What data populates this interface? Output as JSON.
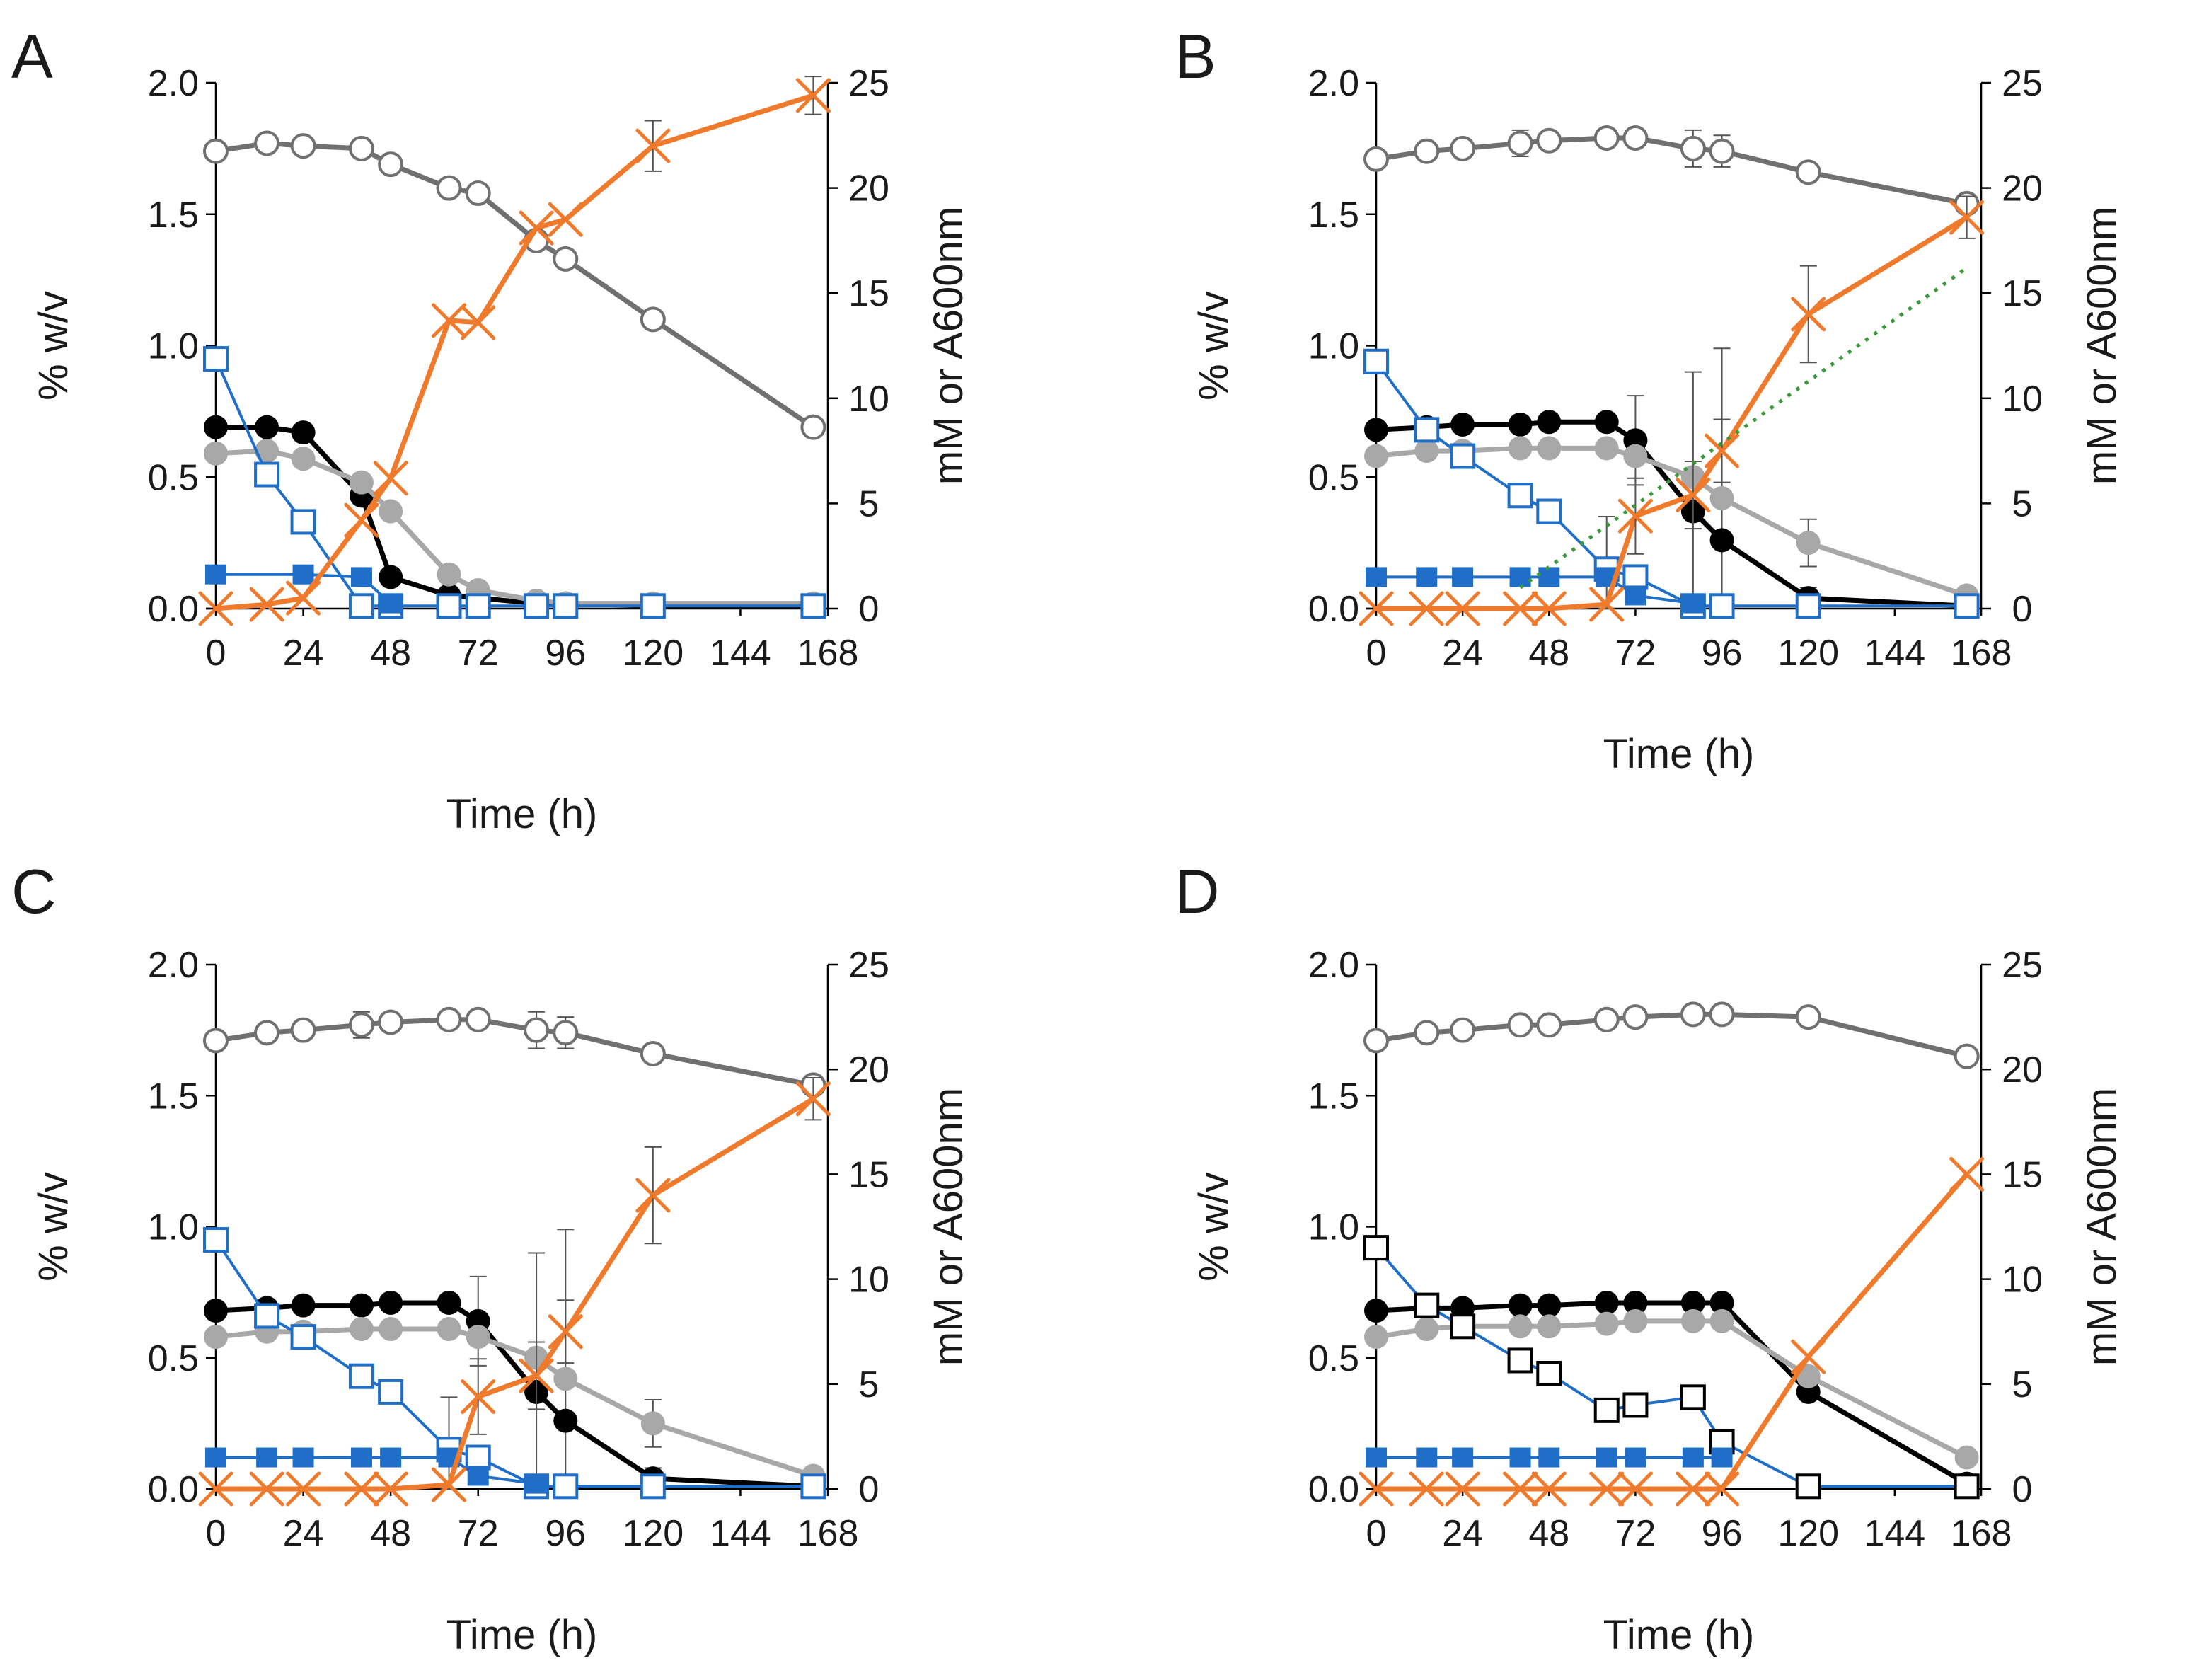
{
  "chart_data": [
    {
      "type": "line",
      "panel": "A",
      "xlabel": "Time (h)",
      "ylabel_left": "% w/v",
      "ylabel_right": "mM or A600nm",
      "xticks": [
        "0",
        "24",
        "48",
        "72",
        "96",
        "120",
        "144",
        "168"
      ],
      "yticks_left": [
        "0.0",
        "0.5",
        "1.0",
        "1.5",
        "2.0"
      ],
      "yticks_right": [
        "0",
        "5",
        "10",
        "15",
        "20",
        "25"
      ],
      "xlim": [
        0,
        168
      ],
      "ylim_left": [
        0,
        2.0
      ],
      "ylim_right": [
        0,
        25
      ],
      "series": [
        {
          "name": "open-circle-grey",
          "axis": "left",
          "color": "#707070",
          "marker": "open-circle",
          "x": [
            0,
            14,
            24,
            40,
            48,
            64,
            72,
            88,
            96,
            120,
            164
          ],
          "values": [
            1.74,
            1.77,
            1.76,
            1.75,
            1.69,
            1.6,
            1.58,
            1.4,
            1.33,
            1.1,
            0.69
          ]
        },
        {
          "name": "filled-circle-black",
          "axis": "left",
          "color": "#000000",
          "marker": "filled-circle",
          "x": [
            0,
            14,
            24,
            40,
            48,
            64,
            72,
            88,
            96,
            120,
            164
          ],
          "values": [
            0.69,
            0.69,
            0.67,
            0.43,
            0.12,
            0.05,
            0.04,
            0.02,
            0.02,
            0.01,
            0.01
          ]
        },
        {
          "name": "filled-circle-grey",
          "axis": "left",
          "color": "#a8a8a8",
          "marker": "filled-circle",
          "x": [
            0,
            14,
            24,
            40,
            48,
            64,
            72,
            88,
            96,
            120,
            164
          ],
          "values": [
            0.59,
            0.6,
            0.57,
            0.48,
            0.37,
            0.13,
            0.07,
            0.03,
            0.02,
            0.02,
            0.02
          ]
        },
        {
          "name": "open-square-blue",
          "axis": "left",
          "color": "#1f6fc9",
          "marker": "open-square",
          "x": [
            0,
            14,
            24,
            40,
            48,
            64,
            72,
            88,
            96,
            120,
            164
          ],
          "values": [
            0.95,
            0.51,
            0.33,
            0.01,
            0.01,
            0.01,
            0.01,
            0.01,
            0.01,
            0.01,
            0.01
          ]
        },
        {
          "name": "filled-square-blue",
          "axis": "left",
          "color": "#1f6fc9",
          "marker": "filled-square",
          "x": [
            0,
            24,
            40,
            48
          ],
          "values": [
            0.13,
            0.13,
            0.12,
            0.02
          ]
        },
        {
          "name": "cross-orange",
          "axis": "right",
          "color": "#f07a2c",
          "marker": "cross",
          "x": [
            0,
            14,
            24,
            40,
            48,
            64,
            72,
            88,
            96,
            120,
            164
          ],
          "values": [
            0,
            0.2,
            0.5,
            4.2,
            6.2,
            13.7,
            13.6,
            18.1,
            18.5,
            22.0,
            24.4
          ],
          "err": [
            0,
            0,
            0,
            0,
            0,
            0,
            0,
            0,
            0,
            1.2,
            0.9
          ]
        }
      ]
    },
    {
      "type": "line",
      "panel": "B",
      "xlabel": "Time (h)",
      "ylabel_left": "% w/v",
      "ylabel_right": "mM or A600nm",
      "xticks": [
        "0",
        "24",
        "48",
        "72",
        "96",
        "120",
        "144",
        "168"
      ],
      "yticks_left": [
        "0.0",
        "0.5",
        "1.0",
        "1.5",
        "2.0"
      ],
      "yticks_right": [
        "0",
        "5",
        "10",
        "15",
        "20",
        "25"
      ],
      "xlim": [
        0,
        168
      ],
      "ylim_left": [
        0,
        2.0
      ],
      "ylim_right": [
        0,
        25
      ],
      "series": [
        {
          "name": "open-circle-grey",
          "axis": "left",
          "color": "#707070",
          "marker": "open-circle",
          "x": [
            0,
            14,
            24,
            40,
            48,
            64,
            72,
            88,
            96,
            120,
            164
          ],
          "values": [
            1.71,
            1.74,
            1.75,
            1.77,
            1.78,
            1.79,
            1.79,
            1.75,
            1.74,
            1.66,
            1.54
          ],
          "err": [
            0,
            0,
            0,
            0.05,
            0,
            0,
            0,
            0.07,
            0.06,
            0,
            0.03
          ]
        },
        {
          "name": "filled-circle-black",
          "axis": "left",
          "color": "#000000",
          "marker": "filled-circle",
          "x": [
            0,
            14,
            24,
            40,
            48,
            64,
            72,
            88,
            96,
            120,
            164
          ],
          "values": [
            0.68,
            0.69,
            0.7,
            0.7,
            0.71,
            0.71,
            0.64,
            0.37,
            0.26,
            0.04,
            0.01
          ],
          "err": [
            0,
            0,
            0,
            0,
            0,
            0,
            0.17,
            0.53,
            0.73,
            0.04,
            0
          ]
        },
        {
          "name": "filled-circle-grey",
          "axis": "left",
          "color": "#a8a8a8",
          "marker": "filled-circle",
          "x": [
            0,
            14,
            24,
            40,
            48,
            64,
            72,
            88,
            96,
            120,
            164
          ],
          "values": [
            0.58,
            0.6,
            0.6,
            0.61,
            0.61,
            0.61,
            0.58,
            0.5,
            0.42,
            0.25,
            0.05
          ],
          "err": [
            0,
            0,
            0,
            0,
            0,
            0,
            0,
            0,
            0,
            0.09,
            0
          ]
        },
        {
          "name": "open-square-blue",
          "axis": "left",
          "color": "#1f6fc9",
          "marker": "open-square",
          "x": [
            0,
            14,
            24,
            40,
            48,
            64,
            72,
            88,
            96,
            120,
            164
          ],
          "values": [
            0.94,
            0.68,
            0.58,
            0.43,
            0.37,
            0.15,
            0.12,
            0.01,
            0.01,
            0.01,
            0.01
          ],
          "err": [
            0,
            0,
            0,
            0,
            0,
            0.2,
            0,
            0,
            0,
            0,
            0
          ]
        },
        {
          "name": "filled-square-blue",
          "axis": "left",
          "color": "#1f6fc9",
          "marker": "filled-square",
          "x": [
            0,
            14,
            24,
            40,
            48,
            64,
            72,
            88
          ],
          "values": [
            0.12,
            0.12,
            0.12,
            0.12,
            0.12,
            0.12,
            0.05,
            0.02
          ]
        },
        {
          "name": "cross-orange",
          "axis": "right",
          "color": "#f07a2c",
          "marker": "cross",
          "x": [
            0,
            14,
            24,
            40,
            48,
            64,
            72,
            88,
            96,
            120,
            164
          ],
          "values": [
            0,
            0,
            0,
            0,
            0,
            0.2,
            4.4,
            5.4,
            7.5,
            14.0,
            18.6
          ],
          "err": [
            0,
            0,
            0,
            0,
            0,
            0,
            1.8,
            1.6,
            1.5,
            2.3,
            1.0
          ]
        },
        {
          "name": "dotted-green-trend",
          "axis": "right",
          "color": "#3a9a3a",
          "marker": "none",
          "dashed": true,
          "x": [
            40,
            164
          ],
          "values": [
            1.0,
            16.2
          ]
        }
      ]
    },
    {
      "type": "line",
      "panel": "C",
      "xlabel": "Time (h)",
      "ylabel_left": "% w/v",
      "ylabel_right": "mM or A600nm",
      "xticks": [
        "0",
        "24",
        "48",
        "72",
        "96",
        "120",
        "144",
        "168"
      ],
      "yticks_left": [
        "0.0",
        "0.5",
        "1.0",
        "1.5",
        "2.0"
      ],
      "yticks_right": [
        "0",
        "5",
        "10",
        "15",
        "20",
        "25"
      ],
      "xlim": [
        0,
        168
      ],
      "ylim_left": [
        0,
        2.0
      ],
      "ylim_right": [
        0,
        25
      ],
      "series": [
        {
          "name": "open-circle-grey",
          "axis": "left",
          "color": "#707070",
          "marker": "open-circle",
          "x": [
            0,
            14,
            24,
            40,
            48,
            64,
            72,
            88,
            96,
            120,
            164
          ],
          "values": [
            1.71,
            1.74,
            1.75,
            1.77,
            1.78,
            1.79,
            1.79,
            1.75,
            1.74,
            1.66,
            1.54
          ],
          "err": [
            0,
            0,
            0,
            0.05,
            0,
            0,
            0,
            0.07,
            0.06,
            0,
            0.03
          ]
        },
        {
          "name": "filled-circle-black",
          "axis": "left",
          "color": "#000000",
          "marker": "filled-circle",
          "x": [
            0,
            14,
            24,
            40,
            48,
            64,
            72,
            88,
            96,
            120,
            164
          ],
          "values": [
            0.68,
            0.69,
            0.7,
            0.7,
            0.71,
            0.71,
            0.64,
            0.37,
            0.26,
            0.04,
            0.01
          ],
          "err": [
            0,
            0,
            0,
            0,
            0,
            0,
            0.17,
            0.53,
            0.73,
            0.04,
            0
          ]
        },
        {
          "name": "filled-circle-grey",
          "axis": "left",
          "color": "#a8a8a8",
          "marker": "filled-circle",
          "x": [
            0,
            14,
            24,
            40,
            48,
            64,
            72,
            88,
            96,
            120,
            164
          ],
          "values": [
            0.58,
            0.6,
            0.6,
            0.61,
            0.61,
            0.61,
            0.58,
            0.5,
            0.42,
            0.25,
            0.05
          ],
          "err": [
            0,
            0,
            0,
            0,
            0,
            0,
            0,
            0,
            0,
            0.09,
            0
          ]
        },
        {
          "name": "open-square-blue",
          "axis": "left",
          "color": "#1f6fc9",
          "marker": "open-square",
          "x": [
            0,
            14,
            24,
            40,
            48,
            64,
            72,
            88,
            96,
            120,
            164
          ],
          "values": [
            0.95,
            0.66,
            0.58,
            0.43,
            0.37,
            0.15,
            0.12,
            0.01,
            0.01,
            0.01,
            0.01
          ],
          "err": [
            0,
            0,
            0,
            0,
            0,
            0.2,
            0,
            0,
            0,
            0,
            0
          ]
        },
        {
          "name": "filled-square-blue",
          "axis": "left",
          "color": "#1f6fc9",
          "marker": "filled-square",
          "x": [
            0,
            14,
            24,
            40,
            48,
            64,
            72,
            88
          ],
          "values": [
            0.12,
            0.12,
            0.12,
            0.12,
            0.12,
            0.12,
            0.05,
            0.02
          ]
        },
        {
          "name": "cross-orange",
          "axis": "right",
          "color": "#f07a2c",
          "marker": "cross",
          "x": [
            0,
            14,
            24,
            40,
            48,
            64,
            72,
            88,
            96,
            120,
            164
          ],
          "values": [
            0,
            0,
            0,
            0,
            0,
            0.2,
            4.4,
            5.4,
            7.5,
            14.0,
            18.6
          ],
          "err": [
            0,
            0,
            0,
            0,
            0,
            0,
            1.8,
            1.6,
            1.5,
            2.3,
            1.0
          ]
        }
      ]
    },
    {
      "type": "line",
      "panel": "D",
      "xlabel": "Time (h)",
      "ylabel_left": "% w/v",
      "ylabel_right": "mM or A600nm",
      "xticks": [
        "0",
        "24",
        "48",
        "72",
        "96",
        "120",
        "144",
        "168"
      ],
      "yticks_left": [
        "0.0",
        "0.5",
        "1.0",
        "1.5",
        "2.0"
      ],
      "yticks_right": [
        "0",
        "5",
        "10",
        "15",
        "20",
        "25"
      ],
      "xlim": [
        0,
        168
      ],
      "ylim_left": [
        0,
        2.0
      ],
      "ylim_right": [
        0,
        25
      ],
      "series": [
        {
          "name": "open-circle-grey",
          "axis": "left",
          "color": "#707070",
          "marker": "open-circle",
          "x": [
            0,
            14,
            24,
            40,
            48,
            64,
            72,
            88,
            96,
            120,
            164
          ],
          "values": [
            1.71,
            1.74,
            1.75,
            1.77,
            1.77,
            1.79,
            1.8,
            1.81,
            1.81,
            1.8,
            1.65
          ]
        },
        {
          "name": "filled-circle-black",
          "axis": "left",
          "color": "#000000",
          "marker": "filled-circle",
          "x": [
            0,
            14,
            24,
            40,
            48,
            64,
            72,
            88,
            96,
            120,
            164
          ],
          "values": [
            0.68,
            0.69,
            0.69,
            0.7,
            0.7,
            0.71,
            0.71,
            0.71,
            0.71,
            0.37,
            0.02
          ]
        },
        {
          "name": "filled-circle-grey",
          "axis": "left",
          "color": "#a8a8a8",
          "marker": "filled-circle",
          "x": [
            0,
            14,
            24,
            40,
            48,
            64,
            72,
            88,
            96,
            120,
            164
          ],
          "values": [
            0.58,
            0.61,
            0.62,
            0.62,
            0.62,
            0.63,
            0.64,
            0.64,
            0.64,
            0.43,
            0.12
          ]
        },
        {
          "name": "open-square-black",
          "axis": "left",
          "color": "#000000",
          "line_color": "#1f6fc9",
          "marker": "open-square",
          "x": [
            0,
            14,
            24,
            40,
            48,
            64,
            72,
            88,
            96,
            120,
            164
          ],
          "values": [
            0.92,
            0.7,
            0.62,
            0.49,
            0.44,
            0.3,
            0.32,
            0.35,
            0.18,
            0.01,
            0.01
          ]
        },
        {
          "name": "filled-square-blue",
          "axis": "left",
          "color": "#1f6fc9",
          "marker": "filled-square",
          "x": [
            0,
            14,
            24,
            40,
            48,
            64,
            72,
            88,
            96
          ],
          "values": [
            0.12,
            0.12,
            0.12,
            0.12,
            0.12,
            0.12,
            0.12,
            0.12,
            0.12
          ]
        },
        {
          "name": "cross-orange",
          "axis": "right",
          "color": "#f07a2c",
          "marker": "cross",
          "x": [
            0,
            14,
            24,
            40,
            48,
            64,
            72,
            88,
            96,
            120,
            164
          ],
          "values": [
            0,
            0,
            0,
            0,
            0,
            0,
            0,
            0,
            0,
            6.3,
            15.0
          ]
        }
      ]
    }
  ]
}
